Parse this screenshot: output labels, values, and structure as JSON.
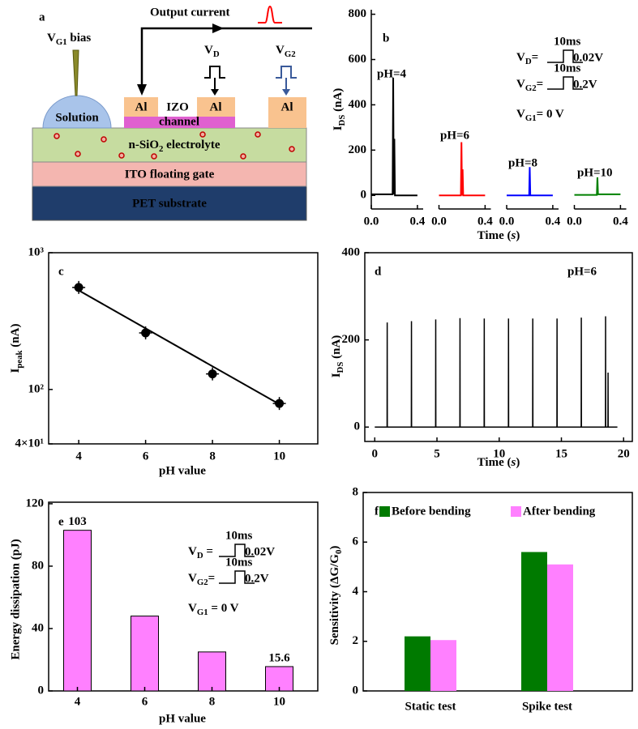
{
  "diagram": {
    "panel": "a",
    "output_current": "Output current",
    "vg1_bias": [
      "V",
      "G1",
      " bias"
    ],
    "vd": [
      "V",
      "D"
    ],
    "vg2": [
      "V",
      "G2"
    ],
    "electrodes": [
      "Al",
      "Al",
      "Al"
    ],
    "izo": "IZO",
    "channel": "channel",
    "solution": "Solution",
    "electrolyte": [
      "n-SiO",
      "2",
      " electrolyte"
    ],
    "floating_gate": "ITO floating gate",
    "substrate": "PET substrate"
  },
  "chart_data": [
    {
      "type": "line",
      "panel": "b",
      "ylabel": [
        "I",
        "DS",
        " (nA)"
      ],
      "xlabel": [
        "Time (",
        "s",
        ")"
      ],
      "ylim": [
        -60,
        820
      ],
      "yticks": [
        0,
        200,
        400,
        600,
        800
      ],
      "xlim": [
        0,
        0.45
      ],
      "xticks": [
        {
          "value": 0,
          "label": "0.0"
        },
        {
          "value": 0.4,
          "label": "0.4"
        }
      ],
      "series": [
        {
          "name": "pH=4",
          "color": "#000000",
          "x": [
            0,
            0.185,
            0.19,
            0.195,
            0.2,
            0.205,
            0.4
          ],
          "values": [
            5,
            5,
            520,
            5,
            250,
            0,
            0
          ]
        },
        {
          "name": "pH=6",
          "color": "#ff0000",
          "x": [
            0,
            0.19,
            0.195,
            0.2,
            0.205,
            0.21,
            0.4
          ],
          "values": [
            0,
            0,
            235,
            0,
            115,
            0,
            0
          ]
        },
        {
          "name": "pH=8",
          "color": "#0000ff",
          "x": [
            0,
            0.195,
            0.2,
            0.205,
            0.4
          ],
          "values": [
            0,
            0,
            125,
            0,
            0
          ]
        },
        {
          "name": "pH=10",
          "color": "#008000",
          "x": [
            0,
            0.195,
            0.2,
            0.205,
            0.21,
            0.4
          ],
          "values": [
            2,
            2,
            80,
            5,
            5,
            5
          ]
        }
      ],
      "annotations": {
        "vd": [
          "V",
          "D",
          "="
        ],
        "vd_width": "10ms",
        "vd_amp": "0.02V",
        "vg2": [
          "V",
          "G2",
          "="
        ],
        "vg2_width": "10ms",
        "vg2_amp": "0.2V",
        "vg1": [
          "V",
          "G1",
          "= 0 V"
        ]
      }
    },
    {
      "type": "scatter",
      "panel": "c",
      "ylabel": [
        "I",
        "peak",
        " (nA)"
      ],
      "xlabel": "pH value",
      "yscale": "log",
      "ylim": [
        40,
        1000
      ],
      "yticks": [
        {
          "value": 1000,
          "label": "10³"
        },
        {
          "value": 100,
          "label": "10²"
        },
        {
          "value": 40,
          "label": "4×10¹"
        }
      ],
      "xlim": [
        3.1,
        11.15
      ],
      "xticks": [
        4,
        6,
        8,
        10
      ],
      "color": "#000000",
      "x": [
        4,
        6,
        8,
        10
      ],
      "values": [
        557,
        259,
        130,
        79
      ],
      "fit": {
        "x": [
          4,
          10
        ],
        "values": [
          530,
          78
        ]
      }
    },
    {
      "type": "line",
      "panel": "d",
      "ylabel": [
        "I",
        "DS",
        " (nA)"
      ],
      "xlabel": [
        "Time (",
        "s",
        ")"
      ],
      "annotation": "pH=6",
      "ylim": [
        -33,
        400
      ],
      "yticks": [
        0,
        200,
        400
      ],
      "xlim": [
        -0.8,
        20.7
      ],
      "xticks": [
        0,
        5,
        10,
        15,
        20
      ],
      "series": [
        {
          "color": "#000000",
          "x": [
            0,
            0.99,
            1.0,
            1.01,
            2.94,
            2.95,
            2.96,
            4.89,
            4.9,
            4.91,
            6.84,
            6.85,
            6.86,
            8.79,
            8.8,
            8.81,
            10.74,
            10.75,
            10.76,
            12.69,
            12.7,
            12.71,
            14.64,
            14.65,
            14.66,
            16.59,
            16.6,
            16.61,
            18.54,
            18.55,
            18.56,
            18.74,
            18.75,
            18.76,
            19.5
          ],
          "values": [
            0,
            0,
            240,
            0,
            0,
            243,
            0,
            0,
            247,
            0,
            0,
            250,
            0,
            0,
            249,
            0,
            0,
            249,
            0,
            0,
            249,
            0,
            0,
            249,
            0,
            0,
            251,
            0,
            0,
            254,
            0,
            0,
            125,
            0,
            0
          ]
        }
      ]
    },
    {
      "type": "bar",
      "panel": "e",
      "ylabel": "Energy dissipation (pJ)",
      "xlabel": "pH value",
      "ylim": [
        0,
        121
      ],
      "yticks": [
        0,
        40,
        80,
        120
      ],
      "categories": [
        "4",
        "6",
        "8",
        "10"
      ],
      "values": [
        103,
        48,
        25,
        15.6
      ],
      "value_labels": [
        "103",
        null,
        null,
        "15.6"
      ],
      "color": "#ff80ff",
      "annotations": {
        "vd": [
          "V",
          "D",
          " ="
        ],
        "vd_width": "10ms",
        "vd_amp": "0.02V",
        "vg2": [
          "V",
          "G2",
          "="
        ],
        "vg2_width": "10ms",
        "vg2_amp": "0.2V",
        "vg1": [
          "V",
          "G1",
          " = 0 V"
        ]
      }
    },
    {
      "type": "grouped-bar",
      "panel": "f",
      "ylabel": [
        "Sensitivity (ΔG/G",
        "0",
        ")"
      ],
      "ylim": [
        0,
        8
      ],
      "yticks": [
        0,
        2,
        4,
        6,
        8
      ],
      "categories": [
        "Static test",
        "Spike test"
      ],
      "legend": "top",
      "series": [
        {
          "name": "Before bending",
          "color": "#007a00",
          "values": [
            2.2,
            5.6
          ]
        },
        {
          "name": "After bending",
          "color": "#ff80ff",
          "values": [
            2.05,
            5.1
          ]
        }
      ]
    }
  ]
}
